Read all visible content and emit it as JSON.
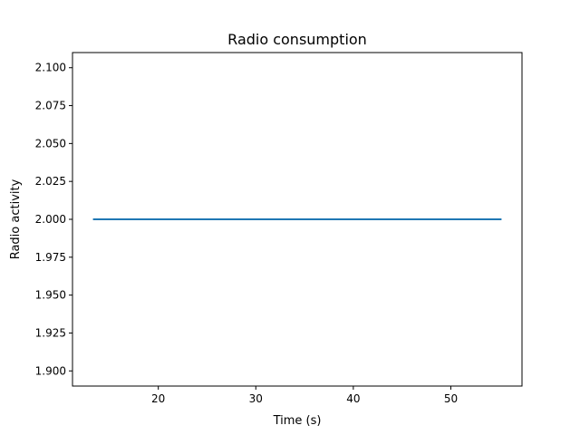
{
  "chart_data": {
    "type": "line",
    "title": "Radio consumption",
    "xlabel": "Time (s)",
    "ylabel": "Radio activity",
    "xlim": [
      11.2,
      57.3
    ],
    "ylim": [
      1.89,
      2.11
    ],
    "xticks": [
      20,
      30,
      40,
      50
    ],
    "yticks": [
      1.9,
      1.925,
      1.95,
      1.975,
      2.0,
      2.025,
      2.05,
      2.075,
      2.1
    ],
    "ytick_labels": [
      "1.900",
      "1.925",
      "1.950",
      "1.975",
      "2.000",
      "2.025",
      "2.050",
      "2.075",
      "2.100"
    ],
    "grid": false,
    "series": [
      {
        "color": "#1f77b4",
        "x": [
          13.3,
          55.2
        ],
        "y": [
          2.0,
          2.0
        ]
      }
    ]
  }
}
